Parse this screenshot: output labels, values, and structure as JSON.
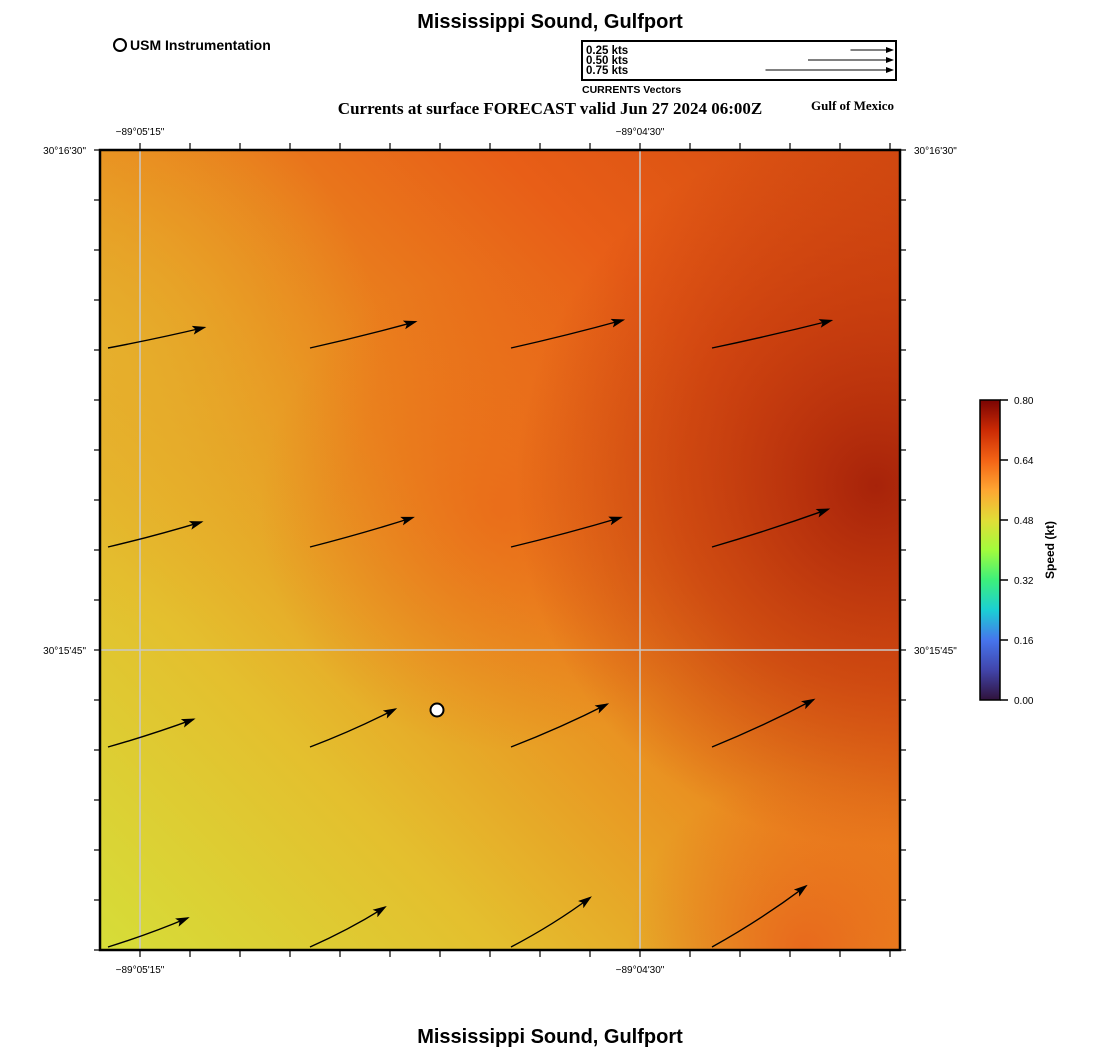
{
  "title": "Mississippi Sound, Gulfport",
  "footer_title": "Mississippi Sound, Gulfport",
  "subtitle": "Currents at surface FORECAST valid Jun 27 2024 06:00Z",
  "region_label": "Gulf of Mexico",
  "station_legend": "USM Instrumentation",
  "vector_legend": {
    "title": "CURRENTS Vectors",
    "entries": [
      "0.25 kts",
      "0.50 kts",
      "0.75 kts"
    ],
    "speeds": [
      0.25,
      0.5,
      0.75
    ]
  },
  "axes": {
    "lon_ticks": [
      "−89°05'15\"",
      "−89°04'30\""
    ],
    "lat_ticks": [
      "30°16'30\"",
      "30°15'45\""
    ]
  },
  "colorbar": {
    "label": "Speed (kt)",
    "ticks": [
      "0.80",
      "0.64",
      "0.48",
      "0.32",
      "0.16",
      "0.00"
    ],
    "colors": [
      "#30123b",
      "#4145ab",
      "#4675ed",
      "#1bcfd4",
      "#3df07b",
      "#a2fc3c",
      "#e1dd37",
      "#fea632",
      "#f36315",
      "#cb2a04",
      "#7a0403"
    ]
  },
  "accent": {
    "background_field": "#e6861c",
    "grid": "#c8c8c8"
  },
  "chart_data": {
    "type": "vector-field",
    "units": "kt",
    "rows": [
      {
        "speeds": [
          0.58,
          0.64,
          0.68,
          0.72
        ],
        "directions_deg": [
          78,
          76,
          76,
          77
        ]
      },
      {
        "speeds": [
          0.57,
          0.63,
          0.67,
          0.72
        ],
        "directions_deg": [
          75,
          74,
          75,
          72
        ]
      },
      {
        "speeds": [
          0.53,
          0.55,
          0.62,
          0.66
        ],
        "directions_deg": [
          72,
          66,
          66,
          65
        ]
      },
      {
        "speeds": [
          0.5,
          0.5,
          0.55,
          0.66
        ],
        "directions_deg": [
          70,
          62,
          58,
          57
        ]
      }
    ],
    "station": {
      "name": "USM Instrumentation"
    }
  }
}
